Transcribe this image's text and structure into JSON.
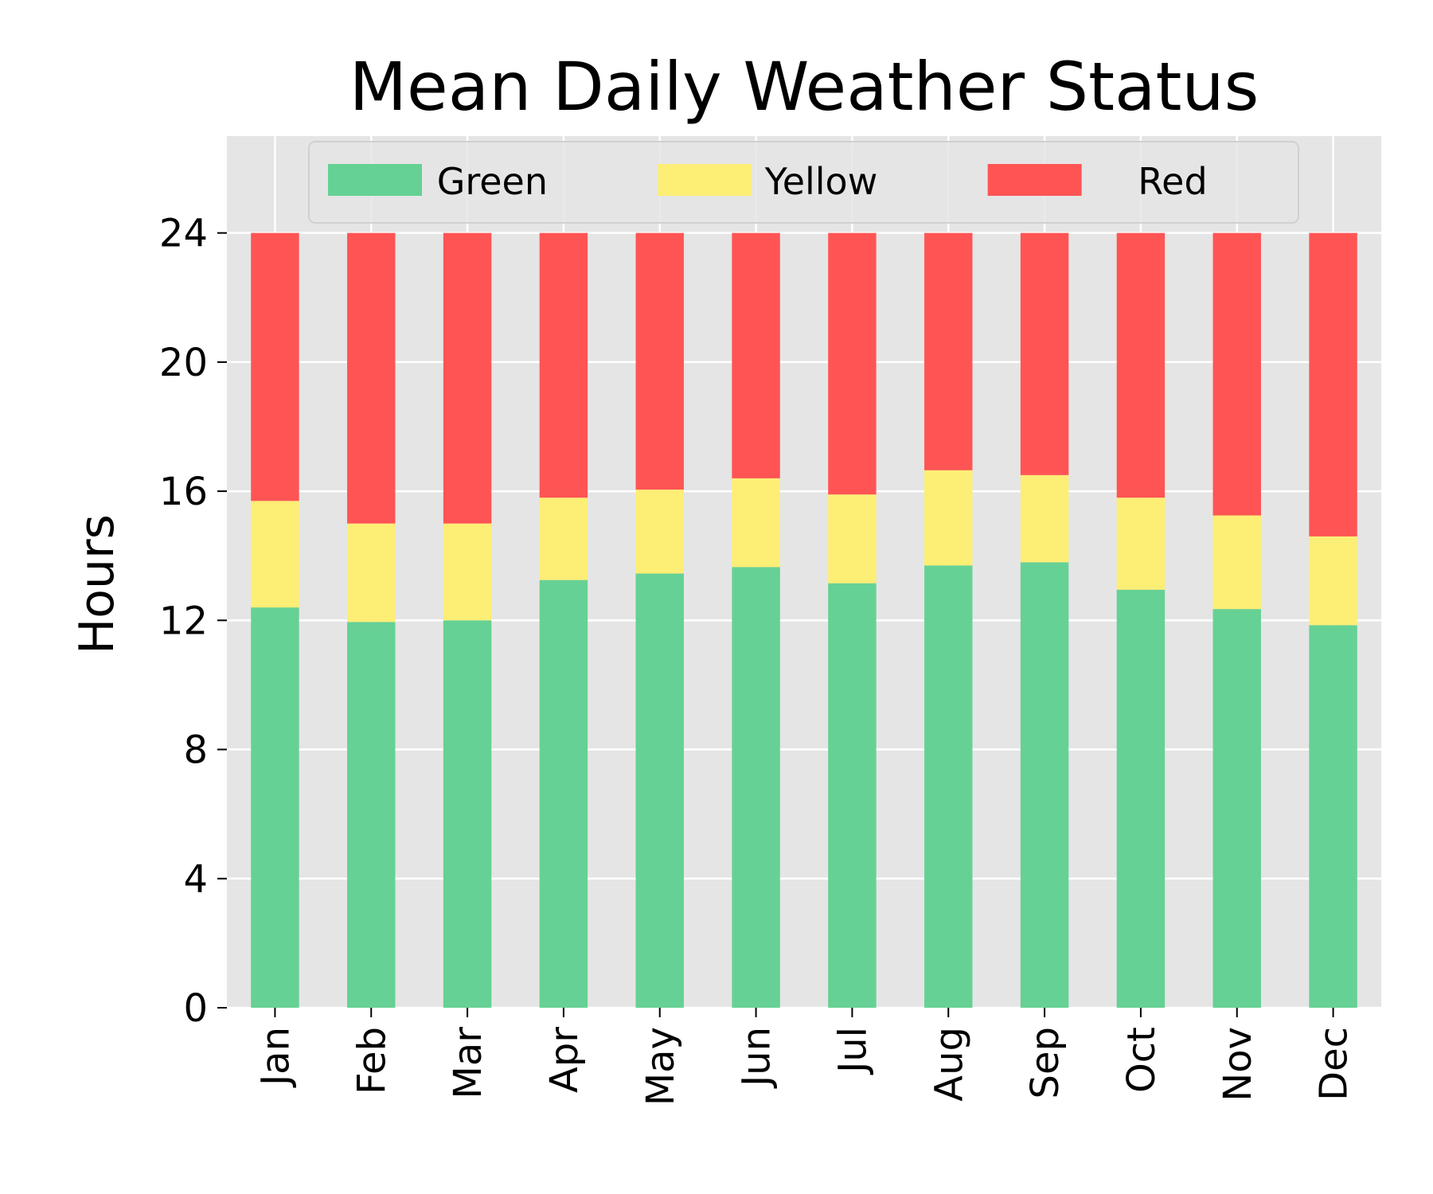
{
  "colors": {
    "plot_background": "#e5e5e5",
    "grid": "#ffffff",
    "green": "#66d194",
    "yellow": "#fdee75",
    "red": "#ff5454",
    "text": "#000000"
  },
  "chart_data": {
    "type": "bar",
    "stacked": true,
    "title": "Mean Daily Weather Status",
    "xlabel": "",
    "ylabel": "Hours",
    "ylim": [
      0,
      27
    ],
    "yticks": [
      0,
      4,
      8,
      12,
      16,
      20,
      24
    ],
    "grid": true,
    "legend_position": "top",
    "categories": [
      "Jan",
      "Feb",
      "Mar",
      "Apr",
      "May",
      "Jun",
      "Jul",
      "Aug",
      "Sep",
      "Oct",
      "Nov",
      "Dec"
    ],
    "series": [
      {
        "name": "Green",
        "color": "#66d194",
        "values": [
          12.4,
          11.95,
          12.0,
          13.25,
          13.45,
          13.65,
          13.15,
          13.7,
          13.8,
          12.95,
          12.35,
          11.85
        ]
      },
      {
        "name": "Yellow",
        "color": "#fdee75",
        "values": [
          3.3,
          3.05,
          3.0,
          2.55,
          2.6,
          2.75,
          2.75,
          2.95,
          2.7,
          2.85,
          2.9,
          2.75
        ]
      },
      {
        "name": "Red",
        "color": "#ff5454",
        "values": [
          8.3,
          9.0,
          9.0,
          8.2,
          7.95,
          7.6,
          8.1,
          7.35,
          7.5,
          8.2,
          8.75,
          9.4
        ]
      }
    ]
  }
}
